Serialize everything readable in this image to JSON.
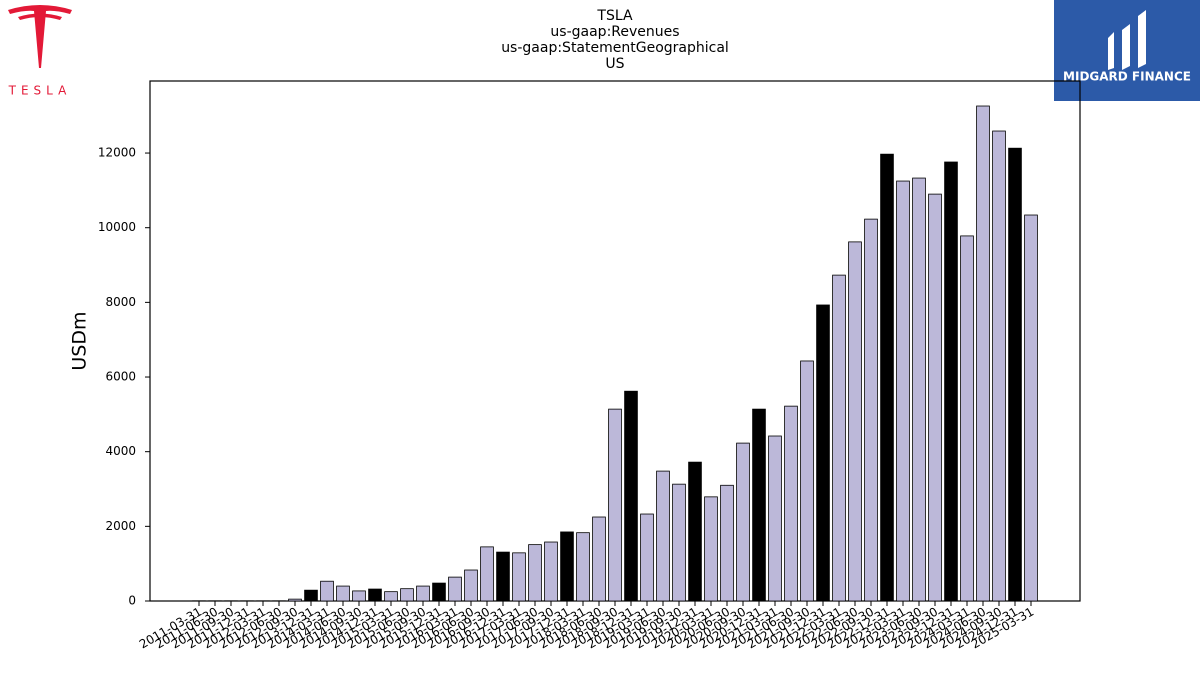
{
  "chart_data": {
    "type": "bar",
    "title": [
      "TSLA",
      "us-gaap:Revenues",
      "us-gaap:StatementGeographical",
      "US"
    ],
    "y_label": "USDm",
    "logos": {
      "left": "TESLA",
      "right": "MIDGARD FINANCE"
    },
    "categories": [
      "2011-03-31",
      "2011-06-30",
      "2011-09-30",
      "2011-12-31",
      "2012-03-31",
      "2012-06-30",
      "2012-09-30",
      "2013-12-31",
      "2014-03-31",
      "2014-06-30",
      "2014-09-30",
      "2014-12-31",
      "2015-03-31",
      "2015-06-30",
      "2015-09-30",
      "2015-12-31",
      "2016-03-31",
      "2016-06-30",
      "2016-09-30",
      "2016-12-31",
      "2017-03-31",
      "2017-06-30",
      "2017-09-30",
      "2017-12-31",
      "2018-03-31",
      "2018-06-30",
      "2018-09-30",
      "2018-12-31",
      "2019-03-31",
      "2019-06-30",
      "2019-09-30",
      "2019-12-31",
      "2020-03-31",
      "2020-06-30",
      "2020-09-30",
      "2020-12-31",
      "2021-03-31",
      "2021-06-30",
      "2021-09-30",
      "2021-12-31",
      "2022-03-31",
      "2022-06-30",
      "2022-09-30",
      "2022-12-31",
      "2023-03-31",
      "2023-06-30",
      "2023-09-30",
      "2023-12-31",
      "2024-03-31",
      "2024-06-30",
      "2024-09-30",
      "2024-12-31",
      "2025-03-31"
    ],
    "values": [
      5,
      5,
      5,
      5,
      5,
      5,
      50,
      290,
      530,
      400,
      270,
      320,
      250,
      330,
      400,
      480,
      640,
      830,
      1450,
      1310,
      1290,
      1510,
      1580,
      1850,
      1830,
      2250,
      5140,
      5620,
      2330,
      3480,
      3130,
      3720,
      2790,
      3100,
      4230,
      5140,
      4420,
      5220,
      6430,
      7930,
      8730,
      9620,
      10230,
      11970,
      11250,
      11330,
      10900,
      11760,
      9780,
      13260,
      12590,
      12130,
      10340
    ],
    "colors": [
      "#bcb8d9",
      "#bcb8d9",
      "#bcb8d9",
      "#bcb8d9",
      "#bcb8d9",
      "#bcb8d9",
      "#bcb8d9",
      "#000000",
      "#bcb8d9",
      "#bcb8d9",
      "#bcb8d9",
      "#000000",
      "#bcb8d9",
      "#bcb8d9",
      "#bcb8d9",
      "#000000",
      "#bcb8d9",
      "#bcb8d9",
      "#bcb8d9",
      "#000000",
      "#bcb8d9",
      "#bcb8d9",
      "#bcb8d9",
      "#000000",
      "#bcb8d9",
      "#bcb8d9",
      "#bcb8d9",
      "#000000",
      "#bcb8d9",
      "#bcb8d9",
      "#bcb8d9",
      "#000000",
      "#bcb8d9",
      "#bcb8d9",
      "#bcb8d9",
      "#000000",
      "#bcb8d9",
      "#bcb8d9",
      "#bcb8d9",
      "#000000",
      "#bcb8d9",
      "#bcb8d9",
      "#bcb8d9",
      "#000000",
      "#bcb8d9",
      "#bcb8d9",
      "#bcb8d9",
      "#000000",
      "#bcb8d9",
      "#bcb8d9",
      "#bcb8d9",
      "#000000",
      "#bcb8d9"
    ],
    "ylim": [
      0,
      13930
    ],
    "yticks": [
      0,
      2000,
      4000,
      6000,
      8000,
      10000,
      12000
    ],
    "grid": false
  }
}
